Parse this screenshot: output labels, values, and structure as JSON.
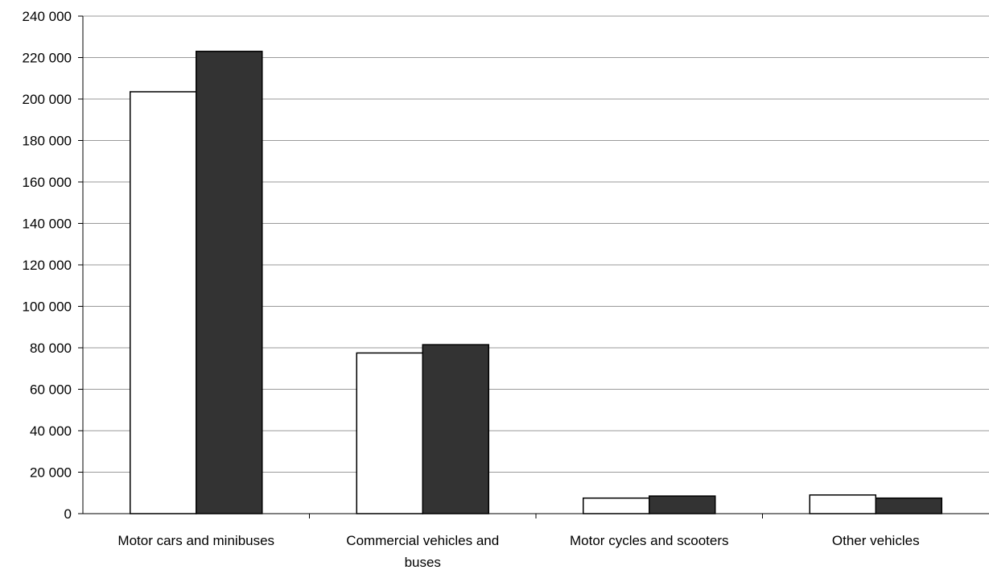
{
  "chart_data": {
    "type": "bar",
    "categories": [
      [
        "Motor cars and minibuses"
      ],
      [
        "Commercial vehicles and",
        "buses"
      ],
      [
        "Motor cycles and scooters"
      ],
      [
        "Other vehicles"
      ]
    ],
    "series": [
      {
        "values": [
          203500,
          77500,
          7500,
          9000
        ],
        "color": "#ffffff"
      },
      {
        "values": [
          223000,
          81500,
          8500,
          7500
        ],
        "color": "#333333"
      }
    ],
    "ylim": [
      0,
      240000
    ],
    "yticks": [
      0,
      20000,
      40000,
      60000,
      80000,
      100000,
      120000,
      140000,
      160000,
      180000,
      200000,
      220000,
      240000
    ],
    "ytick_labels": [
      "0",
      "20 000",
      "40 000",
      "60 000",
      "80 000",
      "100 000",
      "120 000",
      "140 000",
      "160 000",
      "180 000",
      "200 000",
      "220 000",
      "240 000"
    ],
    "grid": true,
    "title": "",
    "xlabel": "",
    "ylabel": ""
  }
}
